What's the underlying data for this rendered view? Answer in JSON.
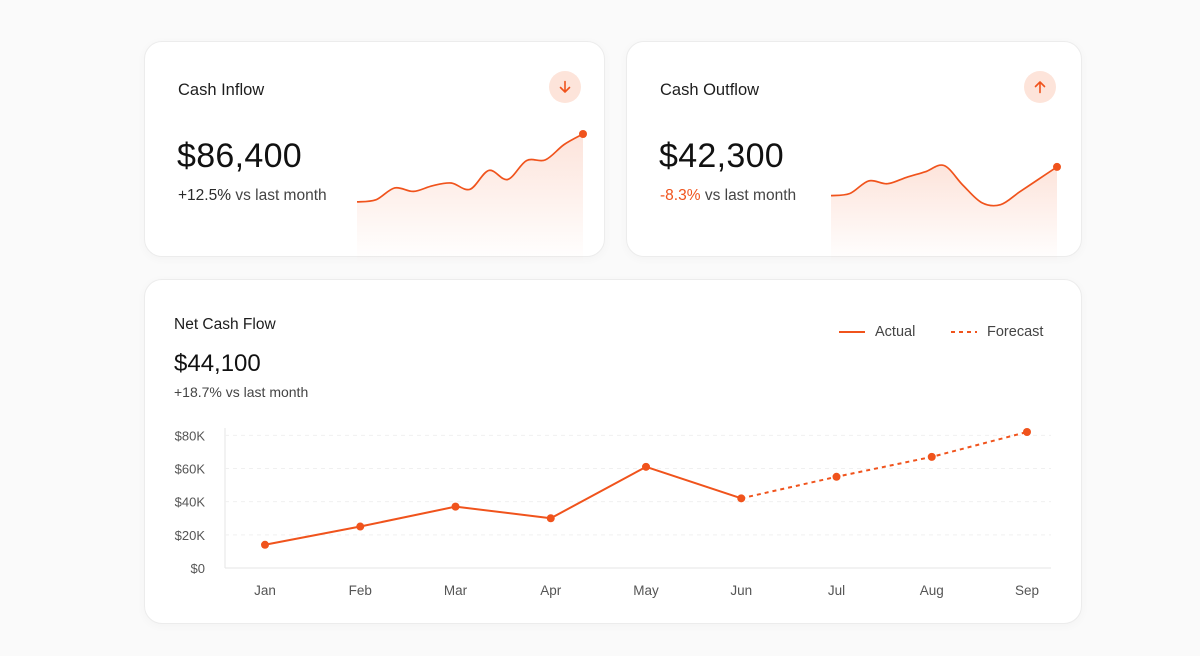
{
  "inflow": {
    "title": "Cash Inflow",
    "value": "$86,400",
    "delta": "+12.5%",
    "delta_text": "vs last month",
    "icon": "arrow-down-icon"
  },
  "outflow": {
    "title": "Cash Outflow",
    "value": "$42,300",
    "delta": "-8.3%",
    "delta_text": "vs last month",
    "icon": "arrow-up-icon"
  },
  "net": {
    "title": "Net Cash Flow",
    "value": "$44,100",
    "delta_text": "+18.7% vs last month"
  },
  "colors": {
    "accent": "#f0531c",
    "icon_bg": "#fde4da",
    "negative": "#f0531c"
  },
  "chart_data": [
    {
      "type": "area",
      "series": [
        {
          "values": [
            0.03,
            0.06,
            0.23,
            0.18,
            0.26,
            0.3,
            0.21,
            0.48,
            0.35,
            0.62,
            0.63,
            0.85,
            1.0
          ]
        }
      ]
    },
    {
      "type": "area",
      "series": [
        {
          "values": [
            0.52,
            0.55,
            0.73,
            0.69,
            0.78,
            0.86,
            0.95,
            0.67,
            0.42,
            0.39,
            0.57,
            0.75,
            0.93
          ]
        }
      ]
    },
    {
      "type": "line",
      "categories": [
        "Jan",
        "Feb",
        "Mar",
        "Apr",
        "May",
        "Jun",
        "Jul",
        "Aug",
        "Sep"
      ],
      "series": [
        {
          "name": "Actual",
          "style": "solid",
          "values": [
            14000,
            25000,
            37000,
            30000,
            61000,
            42000,
            null,
            null,
            null
          ]
        },
        {
          "name": "Forecast",
          "style": "dashed",
          "values": [
            null,
            null,
            null,
            null,
            null,
            42000,
            55000,
            67000,
            82000
          ]
        }
      ],
      "y_ticks": [
        "$0",
        "$20K",
        "$40K",
        "$60K",
        "$80K"
      ],
      "ylim": [
        0,
        82000
      ],
      "grid": true,
      "legend": "top-right"
    }
  ]
}
